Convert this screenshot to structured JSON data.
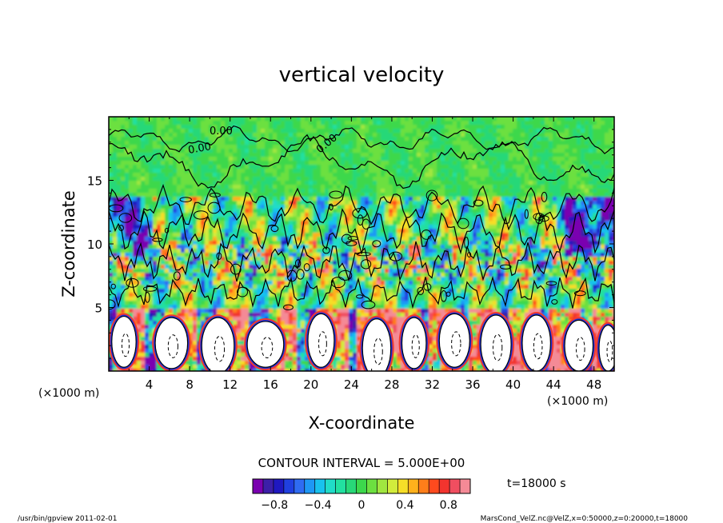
{
  "chart_data": {
    "type": "heatmap",
    "title": "vertical velocity",
    "xlabel": "X-coordinate",
    "ylabel": "Z-coordinate",
    "x_units": "(×1000 m)",
    "y_units": "(×1000 m)",
    "xlim": [
      0,
      50
    ],
    "ylim": [
      0,
      20
    ],
    "x_ticks": [
      "4",
      "8",
      "12",
      "16",
      "20",
      "24",
      "28",
      "32",
      "36",
      "40",
      "44",
      "48"
    ],
    "y_ticks": [
      "5",
      "10",
      "15"
    ],
    "contour_interval_label": "CONTOUR INTERVAL = 5.000E+00",
    "contour_value_label": "0.00",
    "time_label": "t=18000 s",
    "colorbar": {
      "range": [
        -1.0,
        1.0
      ],
      "tick_labels": [
        "−0.8",
        "−0.4",
        "0",
        "0.4",
        "0.8"
      ],
      "tick_values": [
        -0.8,
        -0.4,
        0,
        0.4,
        0.8
      ],
      "colors": [
        "#7a00b0",
        "#3c1fa8",
        "#1f18c0",
        "#2040e0",
        "#2f6cf2",
        "#1e98f5",
        "#18c2ee",
        "#20dcc8",
        "#22e0a0",
        "#28d878",
        "#3cd84c",
        "#6ce040",
        "#a0e640",
        "#d2ec3c",
        "#f6de28",
        "#ffb11c",
        "#ff7e1a",
        "#ff4a1e",
        "#f2342e",
        "#f04e60",
        "#f48a96"
      ]
    },
    "regions": {
      "surface_layer": "strong updraft/downdraft plumes (white cells) below z≈4",
      "upper_layer": "near-zero (green) above z≈14"
    }
  },
  "footer": {
    "left": "/usr/bin/gpview   2011-02-01",
    "right": "MarsCond_VelZ.nc@VelZ,x=0:50000,z=0:20000,t=18000"
  }
}
